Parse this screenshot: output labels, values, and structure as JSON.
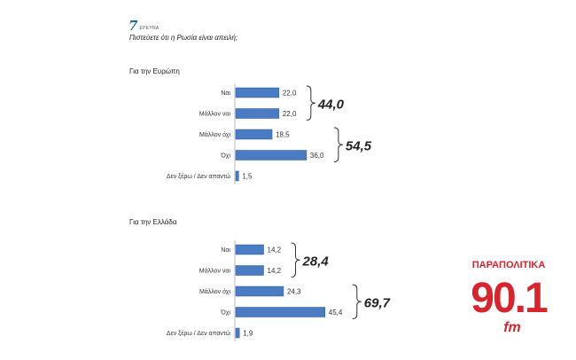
{
  "brand": {
    "logo_icon": "seven-logo",
    "logo_text": "ΕΡΕΥΝΑ"
  },
  "question": "Πιστεύετε ότι η Ρωσία είναι απειλή;",
  "watermark": {
    "top": "ΠΑΡΑΠΟΛΙΤΙΚΑ",
    "number": "90.1",
    "suffix": "fm",
    "color": "#d9232d"
  },
  "colors": {
    "bar": "#4a7cc4",
    "bar_edge": "#2f5c9e"
  },
  "chart_data": [
    {
      "type": "bar",
      "orientation": "horizontal",
      "title": "Για την Ευρώπη",
      "categories": [
        "Ναι",
        "Μάλλον ναι",
        "Μάλλον όχι",
        "Όχι",
        "Δεν ξέρω / Δεν απαντώ"
      ],
      "values": [
        22.0,
        22.0,
        18.5,
        36.0,
        1.5
      ],
      "value_labels": [
        "22,0",
        "22,0",
        "18,5",
        "36,0",
        "1,5"
      ],
      "groups": [
        {
          "label": "44,0",
          "rows": [
            0,
            1
          ]
        },
        {
          "label": "54,5",
          "rows": [
            2,
            3
          ]
        }
      ]
    },
    {
      "type": "bar",
      "orientation": "horizontal",
      "title": "Για την Ελλάδα",
      "categories": [
        "Ναι",
        "Μάλλον ναι",
        "Μάλλον όχι",
        "Όχι",
        "Δεν ξέρω / Δεν απαντώ"
      ],
      "values": [
        14.2,
        14.2,
        24.3,
        45.4,
        1.9
      ],
      "value_labels": [
        "14,2",
        "14,2",
        "24,3",
        "45,4",
        "1,9"
      ],
      "groups": [
        {
          "label": "28,4",
          "rows": [
            0,
            1
          ]
        },
        {
          "label": "69,7",
          "rows": [
            2,
            3
          ]
        }
      ]
    }
  ]
}
